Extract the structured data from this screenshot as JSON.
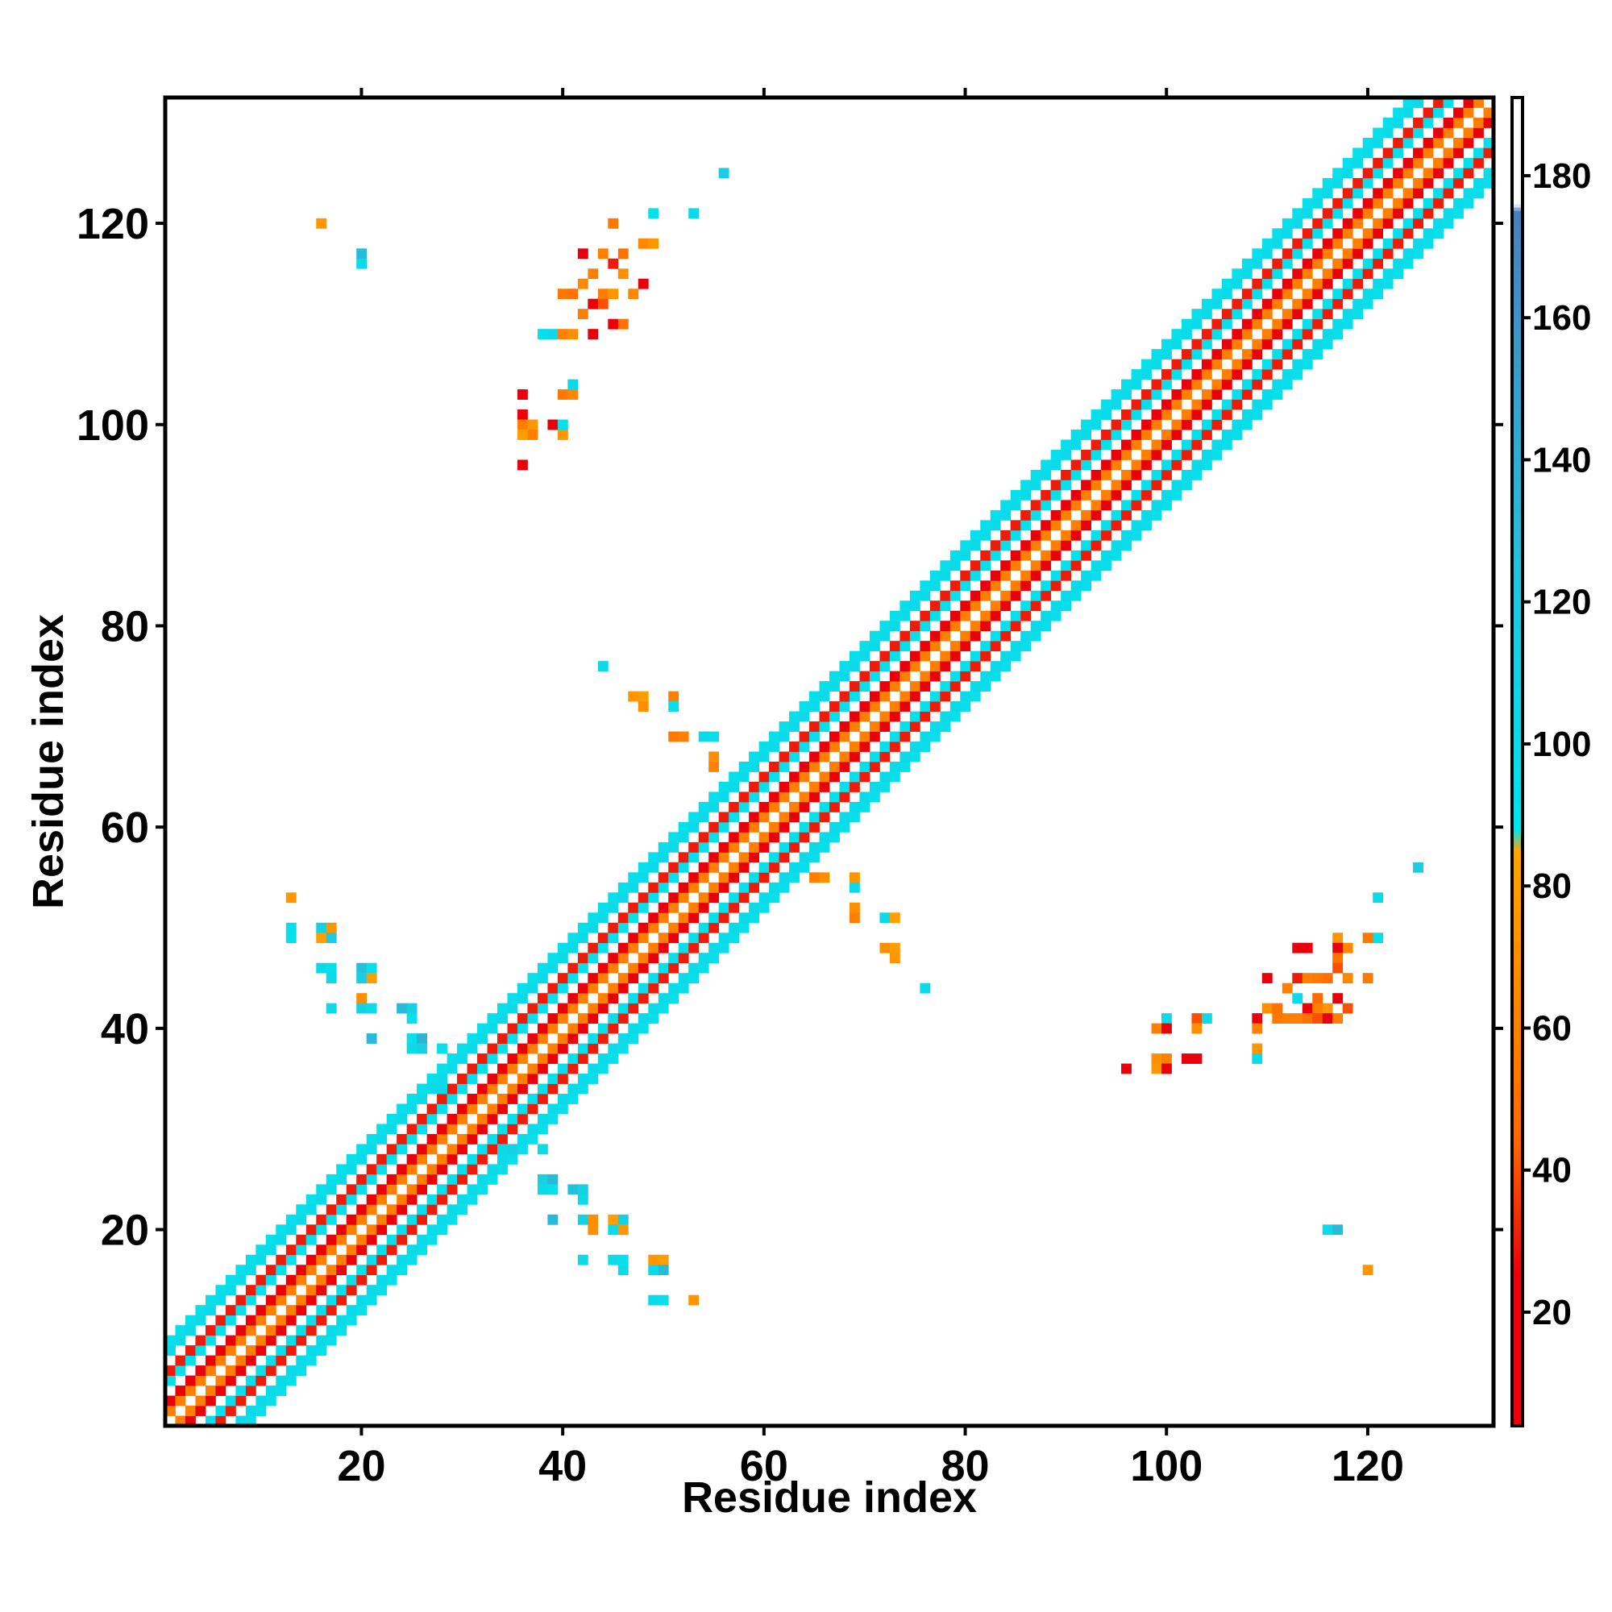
{
  "chart_data": {
    "type": "heatmap",
    "title": "",
    "xlabel": "Residue index",
    "ylabel": "Residue index",
    "xlim": [
      1,
      132
    ],
    "ylim": [
      1,
      132
    ],
    "x_ticks": [
      20,
      40,
      60,
      80,
      100,
      120
    ],
    "y_ticks": [
      20,
      40,
      60,
      80,
      100,
      120
    ],
    "grid": false,
    "colorbar": {
      "range": [
        4,
        191
      ],
      "ticks": [
        20,
        40,
        60,
        80,
        100,
        120,
        140,
        160,
        180
      ],
      "stops": [
        {
          "value": 4,
          "color": "#e8000b"
        },
        {
          "value": 25,
          "color": "#e8000b"
        },
        {
          "value": 45,
          "color": "#ff6a00"
        },
        {
          "value": 85,
          "color": "#ffa500"
        },
        {
          "value": 88,
          "color": "#00e5ee"
        },
        {
          "value": 120,
          "color": "#20c8e0"
        },
        {
          "value": 175,
          "color": "#4a80b8"
        },
        {
          "value": 176,
          "color": "#ffffff"
        },
        {
          "value": 191,
          "color": "#ffffff"
        }
      ]
    },
    "diagonal_band": {
      "offset_pattern": [
        {
          "offset": 0,
          "value": 190
        },
        {
          "offset": 1,
          "value": 60
        },
        {
          "offset": 2,
          "value": 20
        },
        {
          "offset": 3,
          "value": 190
        },
        {
          "offset": 4,
          "value": 95
        },
        {
          "offset": 5,
          "value": 30
        },
        {
          "offset": 6,
          "value": 190
        },
        {
          "offset": 7,
          "value": 100
        },
        {
          "offset": 8,
          "value": 95
        }
      ]
    },
    "off_diagonal_cells": [
      [
        16,
        120,
        75
      ],
      [
        20,
        117,
        130
      ],
      [
        20,
        116,
        100
      ],
      [
        56,
        125,
        115
      ],
      [
        53,
        121,
        100
      ],
      [
        49,
        121,
        95
      ],
      [
        45,
        120,
        55
      ],
      [
        42,
        117,
        15
      ],
      [
        44,
        117,
        60
      ],
      [
        46,
        117,
        50
      ],
      [
        48,
        118,
        65
      ],
      [
        49,
        118,
        75
      ],
      [
        45,
        116,
        30
      ],
      [
        43,
        115,
        60
      ],
      [
        46,
        115,
        70
      ],
      [
        42,
        114,
        65
      ],
      [
        48,
        114,
        20
      ],
      [
        40,
        113,
        55
      ],
      [
        41,
        113,
        50
      ],
      [
        44,
        113,
        60
      ],
      [
        45,
        113,
        75
      ],
      [
        47,
        113,
        65
      ],
      [
        43,
        112,
        15
      ],
      [
        44,
        112,
        40
      ],
      [
        42,
        111,
        60
      ],
      [
        38,
        109,
        95
      ],
      [
        39,
        109,
        100
      ],
      [
        40,
        109,
        60
      ],
      [
        41,
        109,
        70
      ],
      [
        43,
        109,
        15
      ],
      [
        45,
        110,
        15
      ],
      [
        46,
        110,
        50
      ],
      [
        36,
        103,
        20
      ],
      [
        40,
        103,
        55
      ],
      [
        41,
        103,
        65
      ],
      [
        41,
        104,
        100
      ],
      [
        36,
        101,
        20
      ],
      [
        36,
        100,
        60
      ],
      [
        37,
        100,
        75
      ],
      [
        39,
        100,
        20
      ],
      [
        40,
        100,
        95
      ],
      [
        36,
        99,
        80
      ],
      [
        37,
        99,
        60
      ],
      [
        40,
        99,
        75
      ],
      [
        36,
        96,
        15
      ],
      [
        44,
        76,
        100
      ],
      [
        48,
        73,
        80
      ],
      [
        47,
        73,
        75
      ],
      [
        51,
        73,
        60
      ],
      [
        48,
        72,
        70
      ],
      [
        51,
        72,
        95
      ],
      [
        51,
        69,
        55
      ],
      [
        52,
        69,
        60
      ],
      [
        54,
        69,
        100
      ],
      [
        55,
        69,
        95
      ],
      [
        55,
        67,
        70
      ],
      [
        55,
        66,
        60
      ],
      [
        13,
        53,
        75
      ],
      [
        13,
        50,
        95
      ],
      [
        13,
        49,
        95
      ],
      [
        16,
        50,
        110
      ],
      [
        17,
        50,
        75
      ],
      [
        16,
        49,
        80
      ],
      [
        17,
        49,
        120
      ],
      [
        16,
        46,
        100
      ],
      [
        17,
        46,
        95
      ],
      [
        17,
        45,
        100
      ],
      [
        20,
        46,
        125
      ],
      [
        21,
        46,
        95
      ],
      [
        20,
        45,
        115
      ],
      [
        21,
        45,
        80
      ],
      [
        17,
        42,
        100
      ],
      [
        20,
        43,
        70
      ],
      [
        20,
        42,
        110
      ],
      [
        21,
        42,
        100
      ],
      [
        24,
        42,
        130
      ],
      [
        25,
        42,
        110
      ],
      [
        25,
        41,
        95
      ],
      [
        21,
        39,
        130
      ],
      [
        25,
        39,
        95
      ],
      [
        26,
        39,
        135
      ],
      [
        25,
        38,
        100
      ],
      [
        26,
        38,
        110
      ],
      [
        28,
        38,
        95
      ],
      [
        28,
        35,
        100
      ],
      [
        28,
        34,
        100
      ],
      [
        34,
        28,
        100
      ],
      [
        35,
        28,
        110
      ],
      [
        38,
        28,
        100
      ],
      [
        38,
        25,
        110
      ],
      [
        39,
        25,
        130
      ],
      [
        38,
        24,
        100
      ],
      [
        39,
        24,
        95
      ],
      [
        41,
        24,
        125
      ],
      [
        42,
        24,
        110
      ],
      [
        42,
        23,
        100
      ],
      [
        39,
        21,
        130
      ],
      [
        42,
        21,
        110
      ],
      [
        43,
        21,
        70
      ],
      [
        45,
        21,
        80
      ],
      [
        46,
        21,
        110
      ],
      [
        43,
        20,
        70
      ],
      [
        45,
        20,
        100
      ],
      [
        46,
        20,
        75
      ],
      [
        42,
        17,
        100
      ],
      [
        45,
        17,
        100
      ],
      [
        46,
        17,
        95
      ],
      [
        49,
        17,
        75
      ],
      [
        50,
        17,
        80
      ],
      [
        46,
        16,
        100
      ],
      [
        49,
        16,
        100
      ],
      [
        50,
        16,
        130
      ],
      [
        49,
        13,
        100
      ],
      [
        50,
        13,
        95
      ],
      [
        53,
        13,
        75
      ],
      [
        65,
        55,
        60
      ],
      [
        66,
        55,
        70
      ],
      [
        69,
        55,
        75
      ],
      [
        69,
        54,
        100
      ],
      [
        69,
        52,
        70
      ],
      [
        69,
        51,
        60
      ],
      [
        72,
        51,
        100
      ],
      [
        73,
        51,
        80
      ],
      [
        72,
        48,
        70
      ],
      [
        73,
        48,
        80
      ],
      [
        73,
        47,
        75
      ],
      [
        76,
        44,
        100
      ],
      [
        125,
        56,
        115
      ],
      [
        121,
        53,
        100
      ],
      [
        121,
        49,
        95
      ],
      [
        120,
        49,
        55
      ],
      [
        117,
        49,
        75
      ],
      [
        118,
        48,
        65
      ],
      [
        113,
        48,
        15
      ],
      [
        114,
        48,
        20
      ],
      [
        117,
        48,
        15
      ],
      [
        117,
        47,
        50
      ],
      [
        113,
        45,
        30
      ],
      [
        114,
        45,
        60
      ],
      [
        115,
        45,
        55
      ],
      [
        116,
        45,
        50
      ],
      [
        118,
        45,
        65
      ],
      [
        120,
        45,
        55
      ],
      [
        110,
        45,
        15
      ],
      [
        117,
        46,
        40
      ],
      [
        112,
        44,
        60
      ],
      [
        113,
        43,
        100
      ],
      [
        115,
        43,
        45
      ],
      [
        117,
        43,
        20
      ],
      [
        110,
        42,
        70
      ],
      [
        111,
        42,
        50
      ],
      [
        114,
        42,
        15
      ],
      [
        115,
        42,
        60
      ],
      [
        116,
        42,
        75
      ],
      [
        118,
        42,
        40
      ],
      [
        109,
        41,
        15
      ],
      [
        109,
        40,
        60
      ],
      [
        111,
        41,
        55
      ],
      [
        112,
        41,
        60
      ],
      [
        113,
        41,
        60
      ],
      [
        114,
        41,
        50
      ],
      [
        115,
        41,
        40
      ],
      [
        116,
        41,
        15
      ],
      [
        117,
        41,
        60
      ],
      [
        100,
        41,
        100
      ],
      [
        103,
        41,
        40
      ],
      [
        104,
        41,
        100
      ],
      [
        99,
        40,
        60
      ],
      [
        100,
        40,
        15
      ],
      [
        103,
        40,
        70
      ],
      [
        109,
        38,
        75
      ],
      [
        109,
        37,
        100
      ],
      [
        99,
        37,
        70
      ],
      [
        100,
        37,
        60
      ],
      [
        102,
        37,
        15
      ],
      [
        103,
        37,
        15
      ],
      [
        99,
        36,
        75
      ],
      [
        100,
        36,
        15
      ],
      [
        96,
        36,
        15
      ],
      [
        116,
        20,
        100
      ],
      [
        117,
        20,
        130
      ],
      [
        120,
        16,
        75
      ]
    ]
  }
}
